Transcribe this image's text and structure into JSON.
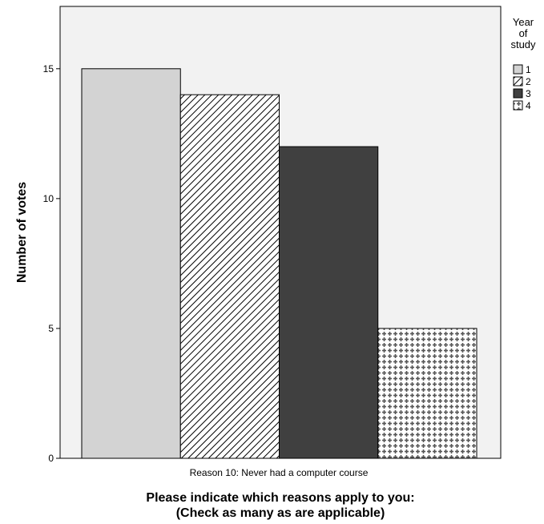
{
  "chart_data": {
    "type": "bar",
    "categories": [
      "Reason 10: Never had a computer course"
    ],
    "series": [
      {
        "name": "1",
        "values": [
          15
        ],
        "color": "#d3d3d3",
        "pattern": "solid"
      },
      {
        "name": "2",
        "values": [
          14
        ],
        "color": "#ffffff",
        "pattern": "diagonal-hatch"
      },
      {
        "name": "3",
        "values": [
          12
        ],
        "color": "#404040",
        "pattern": "solid"
      },
      {
        "name": "4",
        "values": [
          5
        ],
        "color": "#ffffff",
        "pattern": "cross-plus"
      }
    ],
    "title": "",
    "xlabel_line1": "Please indicate which reasons apply to you:",
    "xlabel_line2": "(Check as many as are applicable)",
    "ylabel": "Number of votes",
    "ylim": [
      0,
      17.4
    ],
    "yticks": [
      0,
      5,
      10,
      15
    ],
    "legend": {
      "title_lines": [
        "Year",
        "of",
        "study"
      ],
      "position": "top-right"
    },
    "plot_background": "#f2f2f2",
    "grid": false
  }
}
